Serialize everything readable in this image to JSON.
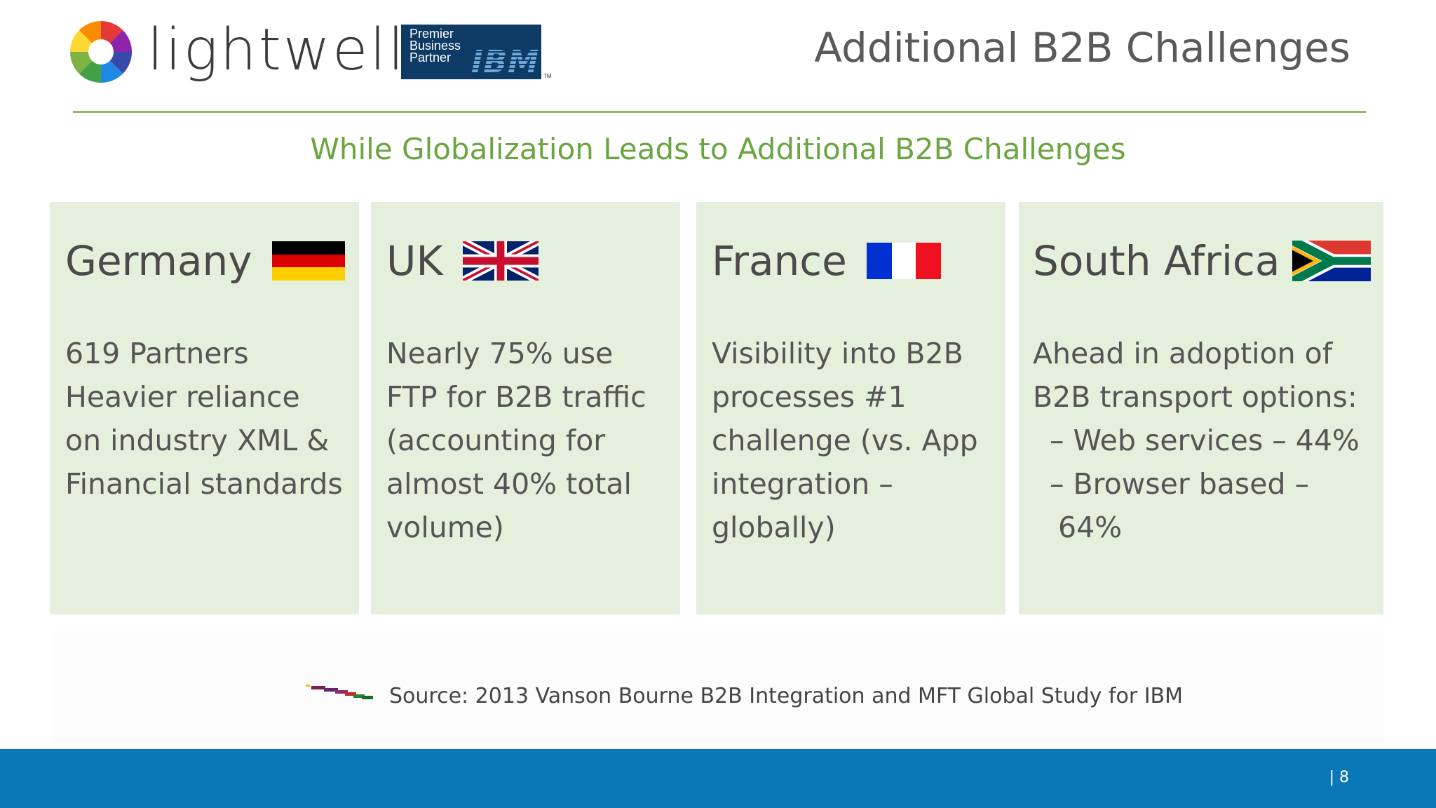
{
  "header": {
    "logo_text": "lightwell",
    "partner_badge": {
      "line1": "Premier",
      "line2": "Business",
      "line3": "Partner",
      "brand": "IBM",
      "tm": "TM"
    },
    "title": "Additional B2B Challenges"
  },
  "subtitle": "While Globalization Leads to Additional B2B Challenges",
  "panels": [
    {
      "country": "Germany",
      "flag_icon": "germany-flag-icon",
      "lines": [
        "619 Partners",
        "Heavier reliance",
        "on industry XML &",
        "Financial standards"
      ]
    },
    {
      "country": "UK",
      "flag_icon": "uk-flag-icon",
      "lines": [
        "Nearly 75% use",
        "FTP for B2B traffic",
        "(accounting for",
        "almost 40% total",
        "volume)"
      ]
    },
    {
      "country": "France",
      "flag_icon": "france-flag-icon",
      "lines": [
        "Visibility into B2B",
        "processes #1",
        "challenge (vs. App",
        "integration –",
        "globally)"
      ]
    },
    {
      "country": "South Africa",
      "flag_icon": "south-africa-flag-icon",
      "lines": [
        "Ahead in adoption of",
        "B2B transport options:",
        "– Web services – 44%",
        "– Browser based –",
        "64%"
      ]
    }
  ],
  "source": "Source: 2013 Vanson Bourne B2B Integration and MFT Global Study for IBM",
  "footer": {
    "page": "| 8"
  },
  "colors": {
    "accent_green": "#6aa640",
    "panel_bg": "#e4f0dc",
    "footer_blue": "#0a78b8",
    "badge_navy": "#0d3b66"
  }
}
